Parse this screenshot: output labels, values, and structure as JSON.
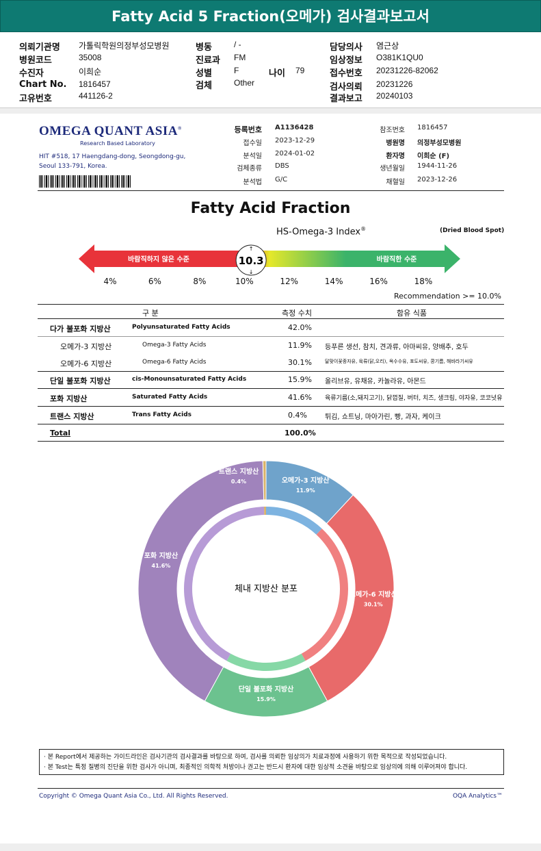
{
  "title": "Fatty Acid 5 Fraction(오메가) 검사결과보고서",
  "header": {
    "c1": [
      {
        "label": "의뢰기관명",
        "value": "가톨릭학원의정부성모병원"
      },
      {
        "label": "병원코드",
        "value": "35008"
      },
      {
        "label": "수진자",
        "value": "이희순"
      },
      {
        "label": "Chart No.",
        "value": "1816457"
      },
      {
        "label": "고유번호",
        "value": "441126-2"
      }
    ],
    "c2": [
      {
        "label": "병동",
        "value": "/ -"
      },
      {
        "label": "진료과",
        "value": "FM"
      },
      {
        "label": "성별",
        "value": "F"
      },
      {
        "label": "검체",
        "value": "Other"
      }
    ],
    "age": {
      "label": "나이",
      "value": "79"
    },
    "c3": [
      {
        "label": "담당의사",
        "value": "염근상"
      },
      {
        "label": "임상정보",
        "value": "O381K1QU0"
      },
      {
        "label": "접수번호",
        "value": "20231226-82062"
      },
      {
        "label": "검사의뢰",
        "value": "20231226"
      },
      {
        "label": "결과보고",
        "value": "20240103"
      }
    ]
  },
  "lab": {
    "logo": "OMEGA QUANT ASIA",
    "logo_sub": "Research Based Laboratory",
    "address1": "HIT #518, 17 Haengdang-dong, Seongdong-gu,",
    "address2": "Seoul 133-791, Korea.",
    "left": [
      {
        "label": "등록번호",
        "value": "A1136428"
      },
      {
        "label": "접수일",
        "value": "2023-12-29"
      },
      {
        "label": "분석일",
        "value": "2024-01-02"
      },
      {
        "label": "검체종류",
        "value": "DBS"
      },
      {
        "label": "분석법",
        "value": "G/C"
      }
    ],
    "right": [
      {
        "label": "참조번호",
        "value": "1816457"
      },
      {
        "label": "병원명",
        "value": "의정부성모병원"
      },
      {
        "label": "환자명",
        "value": "이희순 (F)"
      },
      {
        "label": "생년월일",
        "value": "1944-11-26"
      },
      {
        "label": "채혈일",
        "value": "2023-12-26"
      }
    ]
  },
  "section_title": "Fatty Acid Fraction",
  "index": {
    "title": "HS-Omega-3 Index",
    "reg": "®",
    "specimen": "(Dried Blood Spot)",
    "value": "10.3",
    "value_num": 10.3,
    "bad_label": "바람직하지 않은 수준",
    "good_label": "바람직한 수준",
    "ticks": [
      "4%",
      "6%",
      "8%",
      "10%",
      "12%",
      "14%",
      "16%",
      "18%"
    ],
    "recommendation": "Recommendation  >= 10.0%",
    "colors": {
      "bad": "#e8333a",
      "mid": "#e5e82a",
      "good": "#3bb36a"
    }
  },
  "table": {
    "headers": [
      "구 분",
      "측정 수치",
      "함유 식품"
    ],
    "rows": [
      {
        "ko": "다가 불포화 지방산",
        "en": "Polyunsaturated Fatty Acids",
        "value": "42.0%",
        "foods": ""
      },
      {
        "ko": "오메가-3 지방산",
        "en": "Omega-3 Fatty Acids",
        "value": "11.9%",
        "foods": "등푸른 생선, 참치, 견과류, 아마씨유, 양배추, 호두"
      },
      {
        "ko": "오메가-6 지방산",
        "en": "Omega-6 Fatty Acids",
        "value": "30.1%",
        "foods": "달맞이꽃종자유, 육류(닭,오리), 옥수수유, 포도씨유, 콩기름, 해바라기씨유"
      },
      {
        "ko": "단일 불포화 지방산",
        "en": "cis-Monounsaturated Fatty Acids",
        "value": "15.9%",
        "foods": "올리브유, 유채유, 카놀라유, 아몬드"
      },
      {
        "ko": "포화 지방산",
        "en": "Saturated Fatty Acids",
        "value": "41.6%",
        "foods": "육류기름(소,돼지고기), 닭껍질, 버터, 치즈, 생크림, 야자유, 코코넛유"
      },
      {
        "ko": "트랜스 지방산",
        "en": "Trans Fatty Acids",
        "value": "0.4%",
        "foods": "튀김, 쇼트닝, 마아가린, 빵, 과자, 케이크"
      }
    ],
    "total_label": "Total",
    "total_value": "100.0%"
  },
  "chart_data": {
    "type": "pie",
    "title": "체내 지방산 분포",
    "slices": [
      {
        "label": "오메가-3 지방산",
        "value": 11.9,
        "text": "11.9%",
        "color": "#6fa3cb",
        "inner": "#7db3e0"
      },
      {
        "label": "오메가-6 지방산",
        "value": 30.1,
        "text": "30.1%",
        "color": "#e86a6a",
        "inner": "#f08080"
      },
      {
        "label": "단일 불포화 지방산",
        "value": 15.9,
        "text": "15.9%",
        "color": "#6cc28f",
        "inner": "#86d8a6"
      },
      {
        "label": "포화 지방산",
        "value": 41.6,
        "text": "41.6%",
        "color": "#a083bc",
        "inner": "#b79bd6"
      },
      {
        "label": "트랜스 지방산",
        "value": 0.4,
        "text": "0.4%",
        "color": "#d9b36a",
        "inner": "#d9b36a"
      }
    ]
  },
  "notes": [
    "· 본 Report에서 제공하는 가이드라인은 검사기관의 검사결과를 바탕으로 하여, 검사를 의뢰한 임상의가 치료과정에 사용하기 위한 목적으로 작성되었습니다.",
    "· 본 Test는 특정 질병의 진단을 위한 검사가 아니며, 최종적인 의학적 처방이나 권고는 반드시 환자에 대한 임상적 소견을 바탕으로 임상의에 의해 이루어져야 합니다."
  ],
  "footer": {
    "copyright": "Copyright © Omega Quant Asia Co., Ltd.  All Rights Reserved.",
    "brand": "OQA Analytics™"
  }
}
